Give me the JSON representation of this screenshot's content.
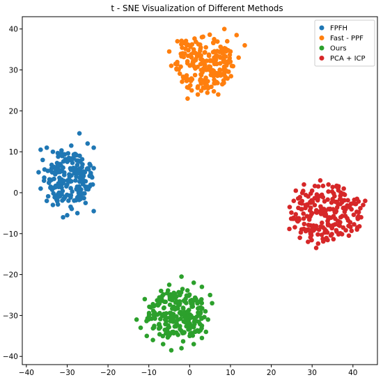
{
  "chart_data": {
    "type": "scatter",
    "title": "t - SNE Visualization of Different Methods",
    "xlabel": "",
    "ylabel": "",
    "xlim": [
      -41,
      46
    ],
    "ylim": [
      -42,
      43
    ],
    "xticks": [
      -40,
      -30,
      -20,
      -10,
      0,
      10,
      20,
      30,
      40
    ],
    "yticks": [
      -40,
      -30,
      -20,
      -10,
      0,
      10,
      20,
      30,
      40
    ],
    "grid": false,
    "legend_position": "top-right",
    "series": [
      {
        "name": "FPFH",
        "color": "#1f77b4",
        "cluster": {
          "center": [
            -29.5,
            3.5
          ],
          "spread": [
            5.5,
            6.5
          ],
          "count": 180
        },
        "points": [
          [
            -36.5,
            10.5
          ],
          [
            -35,
            11
          ],
          [
            -33.5,
            10
          ],
          [
            -31.5,
            9.5
          ],
          [
            -29,
            11.5
          ],
          [
            -27,
            14.5
          ],
          [
            -25,
            12
          ],
          [
            -23.5,
            11
          ],
          [
            -24.5,
            7
          ],
          [
            -23.5,
            6
          ],
          [
            -24.5,
            1.5
          ],
          [
            -23.5,
            -4.5
          ],
          [
            -25.5,
            -2.5
          ],
          [
            -27.5,
            -5
          ],
          [
            -30,
            -5.5
          ],
          [
            -31,
            -6
          ],
          [
            -33.5,
            -3
          ],
          [
            -35,
            -2
          ],
          [
            -36.5,
            1
          ],
          [
            -37,
            5
          ],
          [
            -36,
            8
          ],
          [
            -33,
            5
          ],
          [
            -30,
            2
          ],
          [
            -28,
            6
          ],
          [
            -26,
            3
          ],
          [
            -32,
            0
          ]
        ]
      },
      {
        "name": "Fast - PPF",
        "color": "#ff7f0e",
        "cluster": {
          "center": [
            3.5,
            31.5
          ],
          "spread": [
            7,
            6.5
          ],
          "count": 200
        },
        "points": [
          [
            -5,
            34.5
          ],
          [
            -4.5,
            31
          ],
          [
            -3,
            37
          ],
          [
            -1.5,
            28
          ],
          [
            0.5,
            25
          ],
          [
            -0.5,
            23
          ],
          [
            2,
            24
          ],
          [
            4.5,
            25.5
          ],
          [
            7,
            24
          ],
          [
            8,
            26.5
          ],
          [
            10,
            34.5
          ],
          [
            11.5,
            38.5
          ],
          [
            13.5,
            36
          ],
          [
            12,
            33
          ],
          [
            8.5,
            40
          ],
          [
            6,
            37.5
          ],
          [
            3,
            38
          ],
          [
            1,
            35
          ],
          [
            4,
            30
          ],
          [
            6,
            33
          ]
        ]
      },
      {
        "name": "Ours",
        "color": "#2ca02c",
        "cluster": {
          "center": [
            -3,
            -30
          ],
          "spread": [
            7,
            6
          ],
          "count": 220
        },
        "points": [
          [
            -13,
            -31
          ],
          [
            -12,
            -33
          ],
          [
            -11,
            -26
          ],
          [
            -9.5,
            -28
          ],
          [
            -7,
            -24
          ],
          [
            -5,
            -22.5
          ],
          [
            -2,
            -20.5
          ],
          [
            1,
            -22
          ],
          [
            3,
            -23
          ],
          [
            5,
            -25
          ],
          [
            5.5,
            -27
          ],
          [
            4.5,
            -31
          ],
          [
            4,
            -34
          ],
          [
            3,
            -35.5
          ],
          [
            1,
            -37
          ],
          [
            -2,
            -38
          ],
          [
            -4.5,
            -38.5
          ],
          [
            -6.5,
            -37
          ],
          [
            -9,
            -36
          ],
          [
            -10.5,
            -35
          ],
          [
            -6,
            -31
          ],
          [
            -3,
            -28
          ],
          [
            0,
            -32
          ],
          [
            -4,
            -34
          ]
        ]
      },
      {
        "name": "PCA + ICP",
        "color": "#d62728",
        "cluster": {
          "center": [
            33.5,
            -5
          ],
          "spread": [
            8.5,
            7
          ],
          "count": 200
        },
        "points": [
          [
            24.5,
            -3.5
          ],
          [
            25.5,
            -2
          ],
          [
            26,
            0.5
          ],
          [
            28,
            2
          ],
          [
            30,
            0.5
          ],
          [
            32,
            3
          ],
          [
            34,
            2
          ],
          [
            36,
            1.5
          ],
          [
            38,
            -0.5
          ],
          [
            41,
            -1.5
          ],
          [
            42.5,
            -3
          ],
          [
            43,
            -2
          ],
          [
            42,
            -6
          ],
          [
            41,
            -9
          ],
          [
            39,
            -10.5
          ],
          [
            36,
            -9.5
          ],
          [
            33,
            -11.5
          ],
          [
            31,
            -13.5
          ],
          [
            29,
            -12
          ],
          [
            27,
            -11
          ],
          [
            26.5,
            -7
          ],
          [
            30,
            -5
          ],
          [
            34,
            -4
          ],
          [
            37,
            -6
          ]
        ]
      }
    ]
  }
}
